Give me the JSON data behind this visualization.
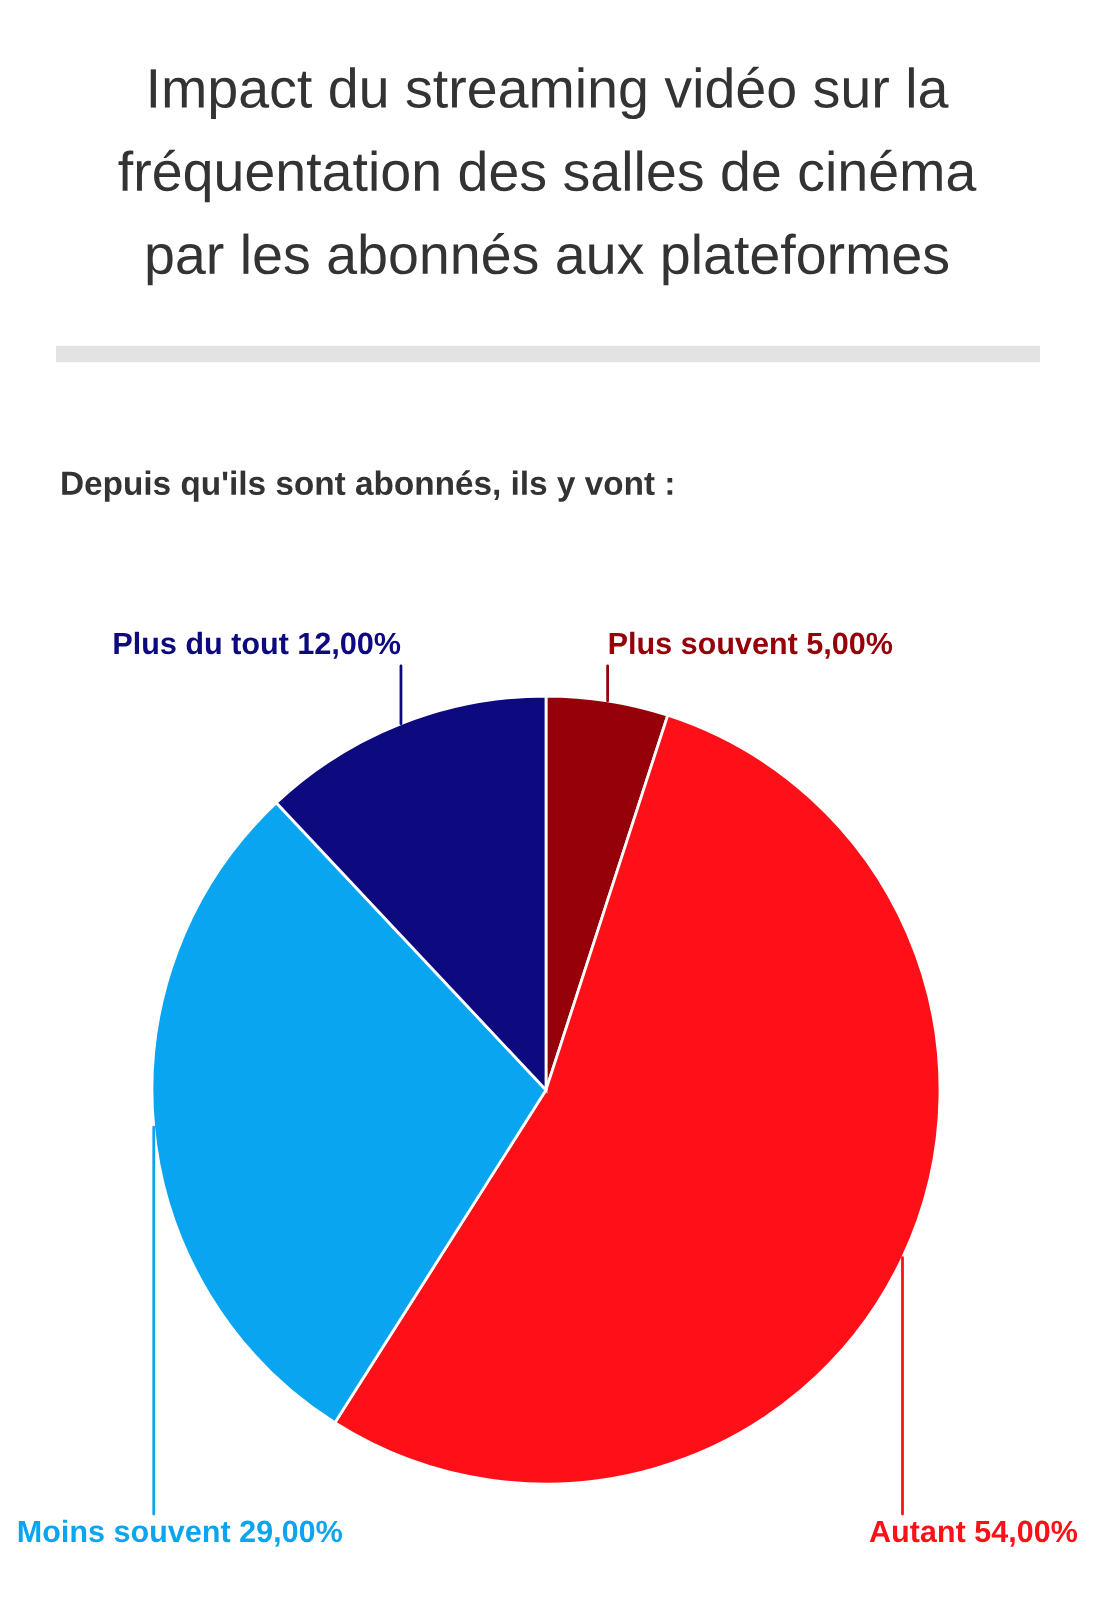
{
  "chart_data": {
    "type": "pie",
    "title": "Impact du streaming vidéo sur la\nfréquentation des salles de cinéma\npar les abonnés aux plateformes",
    "subtitle": "Depuis qu'ils sont abonnés, ils y vont :",
    "categories": [
      "Plus souvent",
      "Autant",
      "Moins souvent",
      "Plus du tout"
    ],
    "values": [
      5,
      54,
      29,
      12
    ],
    "value_labels": [
      "5,00%",
      "54,00%",
      "29,00%",
      "12,00%"
    ],
    "colors": [
      "#960008",
      "#ff0f17",
      "#0aa5f0",
      "#0d0a80"
    ],
    "legend": false
  }
}
